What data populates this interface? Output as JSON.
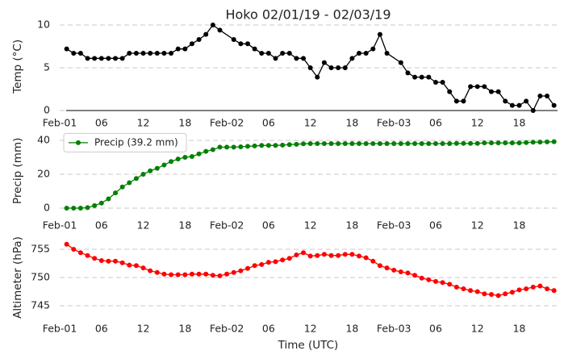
{
  "chart_data": [
    {
      "type": "line",
      "title": "Hoko 02/01/19 - 02/03/19",
      "ylabel": "Temp (°C)",
      "grid": true,
      "xlim": [
        0,
        71.5
      ],
      "ylim": [
        0,
        10.3
      ],
      "yticks": [
        0,
        5,
        10
      ],
      "xticks": [
        {
          "value": 0,
          "label": "Feb-01"
        },
        {
          "value": 6,
          "label": "06"
        },
        {
          "value": 12,
          "label": "12"
        },
        {
          "value": 18,
          "label": "18"
        },
        {
          "value": 24,
          "label": "Feb-02"
        },
        {
          "value": 30,
          "label": "06"
        },
        {
          "value": 36,
          "label": "12"
        },
        {
          "value": 42,
          "label": "18"
        },
        {
          "value": 48,
          "label": "Feb-03"
        },
        {
          "value": 54,
          "label": "06"
        },
        {
          "value": 60,
          "label": "12"
        },
        {
          "value": 66,
          "label": "18"
        }
      ],
      "x": [
        1,
        2,
        3,
        4,
        5,
        6,
        7,
        8,
        9,
        10,
        11,
        12,
        13,
        14,
        15,
        16,
        17,
        18,
        19,
        20,
        21,
        22,
        23,
        25,
        26,
        27,
        28,
        29,
        30,
        31,
        32,
        33,
        34,
        35,
        36,
        37,
        38,
        39,
        40,
        41,
        42,
        43,
        44,
        45,
        46,
        47,
        49,
        50,
        51,
        52,
        53,
        54,
        55,
        56,
        57,
        58,
        59,
        60,
        61,
        62,
        63,
        64,
        65,
        66,
        67,
        68,
        69,
        70,
        71
      ],
      "series": [
        {
          "color": "#000000",
          "values": [
            7.2,
            6.7,
            6.7,
            6.1,
            6.1,
            6.1,
            6.1,
            6.1,
            6.1,
            6.7,
            6.7,
            6.7,
            6.7,
            6.7,
            6.7,
            6.7,
            7.2,
            7.2,
            7.8,
            8.3,
            8.9,
            10.0,
            9.4,
            8.3,
            7.8,
            7.8,
            7.2,
            6.7,
            6.7,
            6.1,
            6.7,
            6.7,
            6.1,
            6.1,
            5.0,
            3.9,
            5.6,
            5.0,
            5.0,
            5.0,
            6.1,
            6.7,
            6.7,
            7.2,
            8.9,
            6.7,
            5.6,
            4.4,
            3.9,
            3.9,
            3.9,
            3.3,
            3.3,
            2.2,
            1.1,
            1.1,
            2.8,
            2.8,
            2.8,
            2.2,
            2.2,
            1.1,
            0.6,
            0.6,
            1.1,
            0.0,
            1.7,
            1.7,
            0.6
          ]
        }
      ]
    },
    {
      "type": "line",
      "ylabel": "Precip (mm)",
      "grid": true,
      "legend": "upper left",
      "xlim": [
        0,
        71.5
      ],
      "ylim": [
        -2,
        46
      ],
      "yticks": [
        0,
        20,
        40
      ],
      "xticks": [
        {
          "value": 0,
          "label": "Feb-01"
        },
        {
          "value": 6,
          "label": "06"
        },
        {
          "value": 12,
          "label": "12"
        },
        {
          "value": 18,
          "label": "18"
        },
        {
          "value": 24,
          "label": "Feb-02"
        },
        {
          "value": 30,
          "label": "06"
        },
        {
          "value": 36,
          "label": "12"
        },
        {
          "value": 42,
          "label": "18"
        },
        {
          "value": 48,
          "label": "Feb-03"
        },
        {
          "value": 54,
          "label": "06"
        },
        {
          "value": 60,
          "label": "12"
        },
        {
          "value": 66,
          "label": "18"
        }
      ],
      "x": [
        1,
        2,
        3,
        4,
        5,
        6,
        7,
        8,
        9,
        10,
        11,
        12,
        13,
        14,
        15,
        16,
        17,
        18,
        19,
        20,
        21,
        22,
        23,
        24,
        25,
        26,
        27,
        28,
        29,
        30,
        31,
        32,
        33,
        34,
        35,
        36,
        37,
        38,
        39,
        40,
        41,
        42,
        43,
        44,
        45,
        46,
        47,
        48,
        49,
        50,
        51,
        52,
        53,
        54,
        55,
        56,
        57,
        58,
        59,
        60,
        61,
        62,
        63,
        64,
        65,
        66,
        67,
        68,
        69,
        70,
        71
      ],
      "series": [
        {
          "name": "Precip (39.2 mm)",
          "color": "#008000",
          "values": [
            0,
            0,
            0,
            0.3,
            1.5,
            3,
            5.5,
            9,
            12.5,
            15,
            17.5,
            20,
            22,
            23.5,
            25.5,
            27.5,
            29,
            30,
            30.5,
            32,
            33.5,
            34.5,
            36,
            36,
            36,
            36.2,
            36.5,
            36.7,
            37,
            37,
            37,
            37.2,
            37.5,
            37.7,
            38,
            38.1,
            38.1,
            38.1,
            38.1,
            38.1,
            38.1,
            38.1,
            38.1,
            38.1,
            38.1,
            38.1,
            38.1,
            38.1,
            38.1,
            38.1,
            38.1,
            38.1,
            38.1,
            38.1,
            38.1,
            38.1,
            38.2,
            38.2,
            38.2,
            38.2,
            38.5,
            38.5,
            38.5,
            38.5,
            38.5,
            38.5,
            38.7,
            38.9,
            39,
            39.1,
            39.2
          ]
        }
      ]
    },
    {
      "type": "line",
      "ylabel": "Altimeter (hPa)",
      "xlabel": "Time (UTC)",
      "grid": true,
      "xlim": [
        0,
        71.5
      ],
      "ylim": [
        743.5,
        756.5
      ],
      "yticks": [
        745,
        750,
        755
      ],
      "xticks": [
        {
          "value": 0,
          "label": "Feb-01"
        },
        {
          "value": 6,
          "label": "06"
        },
        {
          "value": 12,
          "label": "12"
        },
        {
          "value": 18,
          "label": "18"
        },
        {
          "value": 24,
          "label": "Feb-02"
        },
        {
          "value": 30,
          "label": "06"
        },
        {
          "value": 36,
          "label": "12"
        },
        {
          "value": 42,
          "label": "18"
        },
        {
          "value": 48,
          "label": "Feb-03"
        },
        {
          "value": 54,
          "label": "06"
        },
        {
          "value": 60,
          "label": "12"
        },
        {
          "value": 66,
          "label": "18"
        }
      ],
      "x": [
        1,
        2,
        3,
        4,
        5,
        6,
        7,
        8,
        9,
        10,
        11,
        12,
        13,
        14,
        15,
        16,
        17,
        18,
        19,
        20,
        21,
        22,
        23,
        24,
        25,
        26,
        27,
        28,
        29,
        30,
        31,
        32,
        33,
        34,
        35,
        36,
        37,
        38,
        39,
        40,
        41,
        42,
        43,
        44,
        45,
        46,
        47,
        48,
        49,
        50,
        51,
        52,
        53,
        54,
        55,
        56,
        57,
        58,
        59,
        60,
        61,
        62,
        63,
        64,
        65,
        66,
        67,
        68,
        69,
        70,
        71
      ],
      "series": [
        {
          "color": "#ff0000",
          "values": [
            755.9,
            755.0,
            754.4,
            753.9,
            753.4,
            753.0,
            752.9,
            752.9,
            752.6,
            752.2,
            752.1,
            751.7,
            751.2,
            750.9,
            750.6,
            750.5,
            750.5,
            750.5,
            750.6,
            750.6,
            750.6,
            750.4,
            750.3,
            750.6,
            750.9,
            751.2,
            751.6,
            752.1,
            752.3,
            752.7,
            752.8,
            753.1,
            753.4,
            754.0,
            754.4,
            753.8,
            753.9,
            754.1,
            753.9,
            753.9,
            754.1,
            754.1,
            753.8,
            753.5,
            752.9,
            752.1,
            751.7,
            751.3,
            751.0,
            750.8,
            750.4,
            749.9,
            749.6,
            749.3,
            749.1,
            748.8,
            748.3,
            748.0,
            747.7,
            747.5,
            747.1,
            747.0,
            746.8,
            747.1,
            747.4,
            747.8,
            748.0,
            748.3,
            748.5,
            748.0,
            747.7
          ]
        }
      ]
    }
  ]
}
